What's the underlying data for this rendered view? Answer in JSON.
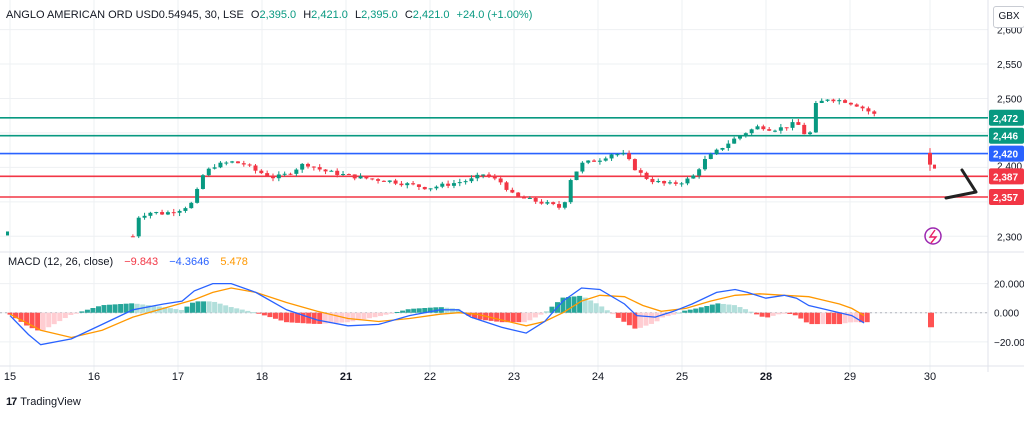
{
  "header": {
    "symbol": "ANGLO AMERICAN ORD USD0.54945, 30, LSE",
    "o_label": "O",
    "o_value": "2,395.0",
    "h_label": "H",
    "h_value": "2,421.0",
    "l_label": "L",
    "l_value": "2,395.0",
    "c_label": "C",
    "c_value": "2,421.0",
    "change": "+24.0 (+1.00%)"
  },
  "currency": "GBX",
  "macd_header": {
    "name": "MACD (12, 26, close)",
    "v1": "−9.843",
    "v2": "−4.3646",
    "v3": "5.478"
  },
  "brand": "TradingView",
  "colors": {
    "up": "#089981",
    "down": "#f23645",
    "blue": "#2962ff",
    "teal": "#26a69a",
    "macd_line": "#2962ff",
    "signal_line": "#ff9800",
    "grid": "#eef0f3"
  },
  "chart_data": [
    {
      "type": "candlestick",
      "title": "",
      "y_ticks": [
        2300,
        2350,
        2400,
        2450,
        2500,
        2550,
        2600
      ],
      "y_tick_labels": [
        "2,300",
        "",
        "",
        "",
        "2,500",
        "2,550",
        "2,600"
      ],
      "ylim": [
        2283,
        2611
      ],
      "x_ticks": [
        "15",
        "16",
        "17",
        "18",
        "21",
        "22",
        "23",
        "24",
        "25",
        "28",
        "29",
        "30"
      ],
      "price_lines": [
        {
          "value": 2472,
          "label": "2,472",
          "color": "#089981"
        },
        {
          "value": 2446,
          "label": "2,446",
          "color": "#089981"
        },
        {
          "value": 2420,
          "label": "2,420",
          "color": "#2962ff"
        },
        {
          "value": 2387,
          "label": "2,387",
          "color": "#f23645"
        },
        {
          "value": 2357,
          "label": "2,357",
          "color": "#f23645"
        }
      ],
      "hidden_label": "2,400",
      "close_path": [
        [
          15.0,
          2305
        ],
        [
          16.6,
          2298
        ],
        [
          17.0,
          2300
        ],
        [
          17.1,
          2330
        ],
        [
          17.3,
          2335
        ],
        [
          17.5,
          2333
        ],
        [
          17.8,
          2340
        ],
        [
          18.0,
          2350
        ],
        [
          18.1,
          2385
        ],
        [
          18.3,
          2402
        ],
        [
          18.6,
          2408
        ],
        [
          18.8,
          2405
        ],
        [
          19.0,
          2395
        ],
        [
          19.3,
          2385
        ],
        [
          19.5,
          2390
        ],
        [
          19.8,
          2406
        ],
        [
          20.1,
          2395
        ],
        [
          20.5,
          2388
        ],
        [
          20.8,
          2384
        ],
        [
          21.2,
          2380
        ],
        [
          21.5,
          2375
        ],
        [
          21.8,
          2370
        ],
        [
          22.1,
          2375
        ],
        [
          22.5,
          2382
        ],
        [
          22.7,
          2390
        ],
        [
          23.0,
          2378
        ],
        [
          23.2,
          2358
        ],
        [
          23.5,
          2352
        ],
        [
          23.8,
          2346
        ],
        [
          24.0,
          2340
        ],
        [
          24.1,
          2380
        ],
        [
          24.3,
          2405
        ],
        [
          24.6,
          2412
        ],
        [
          24.8,
          2420
        ],
        [
          25.0,
          2418
        ],
        [
          25.2,
          2395
        ],
        [
          25.4,
          2382
        ],
        [
          25.7,
          2375
        ],
        [
          25.9,
          2378
        ],
        [
          26.1,
          2385
        ],
        [
          26.3,
          2410
        ],
        [
          26.6,
          2430
        ],
        [
          26.8,
          2442
        ],
        [
          27.0,
          2452
        ],
        [
          27.2,
          2460
        ],
        [
          27.4,
          2455
        ],
        [
          27.6,
          2458
        ],
        [
          27.8,
          2465
        ],
        [
          28.0,
          2440
        ],
        [
          28.1,
          2490
        ],
        [
          28.3,
          2500
        ],
        [
          28.6,
          2496
        ],
        [
          28.8,
          2490
        ],
        [
          29.0,
          2480
        ],
        [
          29.1,
          2475
        ],
        [
          29.9,
          2402
        ]
      ]
    },
    {
      "type": "macd",
      "title": "MACD (12, 26, close)",
      "y_ticks": [
        -20,
        0,
        20
      ],
      "y_tick_labels": [
        "−20.000",
        "0.000",
        "20.000"
      ],
      "ylim": [
        -27,
        28
      ],
      "macd_points": [
        [
          15.0,
          -2
        ],
        [
          15.3,
          -15
        ],
        [
          15.5,
          -22
        ],
        [
          16.0,
          -18
        ],
        [
          16.5,
          -8
        ],
        [
          17.0,
          2
        ],
        [
          17.5,
          6
        ],
        [
          17.8,
          8
        ],
        [
          18.0,
          15
        ],
        [
          18.3,
          20
        ],
        [
          18.6,
          20
        ],
        [
          19.0,
          14
        ],
        [
          19.5,
          2
        ],
        [
          20.0,
          -5
        ],
        [
          20.5,
          -9
        ],
        [
          21.0,
          -8
        ],
        [
          21.5,
          -2
        ],
        [
          22.0,
          2
        ],
        [
          22.3,
          2
        ],
        [
          22.5,
          -3
        ],
        [
          23.0,
          -10
        ],
        [
          23.4,
          -14
        ],
        [
          23.7,
          -6
        ],
        [
          24.0,
          8
        ],
        [
          24.3,
          17
        ],
        [
          24.6,
          16
        ],
        [
          25.0,
          6
        ],
        [
          25.2,
          -2
        ],
        [
          25.5,
          -3
        ],
        [
          25.8,
          1
        ],
        [
          26.1,
          6
        ],
        [
          26.5,
          14
        ],
        [
          26.8,
          16
        ],
        [
          27.0,
          14
        ],
        [
          27.3,
          10
        ],
        [
          27.6,
          12
        ],
        [
          27.8,
          10
        ],
        [
          28.0,
          5
        ],
        [
          28.2,
          3
        ],
        [
          28.5,
          0
        ],
        [
          28.7,
          -2
        ],
        [
          28.9,
          -7
        ]
      ],
      "signal_points": [
        [
          15.0,
          -1
        ],
        [
          15.5,
          -12
        ],
        [
          16.0,
          -17
        ],
        [
          16.5,
          -12
        ],
        [
          17.0,
          -3
        ],
        [
          17.5,
          3
        ],
        [
          18.0,
          9
        ],
        [
          18.3,
          14
        ],
        [
          18.6,
          17
        ],
        [
          19.0,
          14
        ],
        [
          19.5,
          7
        ],
        [
          20.0,
          1
        ],
        [
          20.5,
          -4
        ],
        [
          21.0,
          -6
        ],
        [
          21.5,
          -4
        ],
        [
          22.0,
          -1
        ],
        [
          22.3,
          0
        ],
        [
          22.6,
          -1
        ],
        [
          23.0,
          -5
        ],
        [
          23.4,
          -9
        ],
        [
          23.7,
          -6
        ],
        [
          24.0,
          0
        ],
        [
          24.3,
          8
        ],
        [
          24.6,
          12
        ],
        [
          25.0,
          11
        ],
        [
          25.3,
          5
        ],
        [
          25.6,
          1
        ],
        [
          26.0,
          3
        ],
        [
          26.4,
          8
        ],
        [
          26.8,
          12
        ],
        [
          27.2,
          13
        ],
        [
          27.6,
          12
        ],
        [
          28.0,
          11
        ],
        [
          28.2,
          9
        ],
        [
          28.5,
          6
        ],
        [
          28.7,
          3
        ],
        [
          28.9,
          -2
        ]
      ]
    }
  ]
}
